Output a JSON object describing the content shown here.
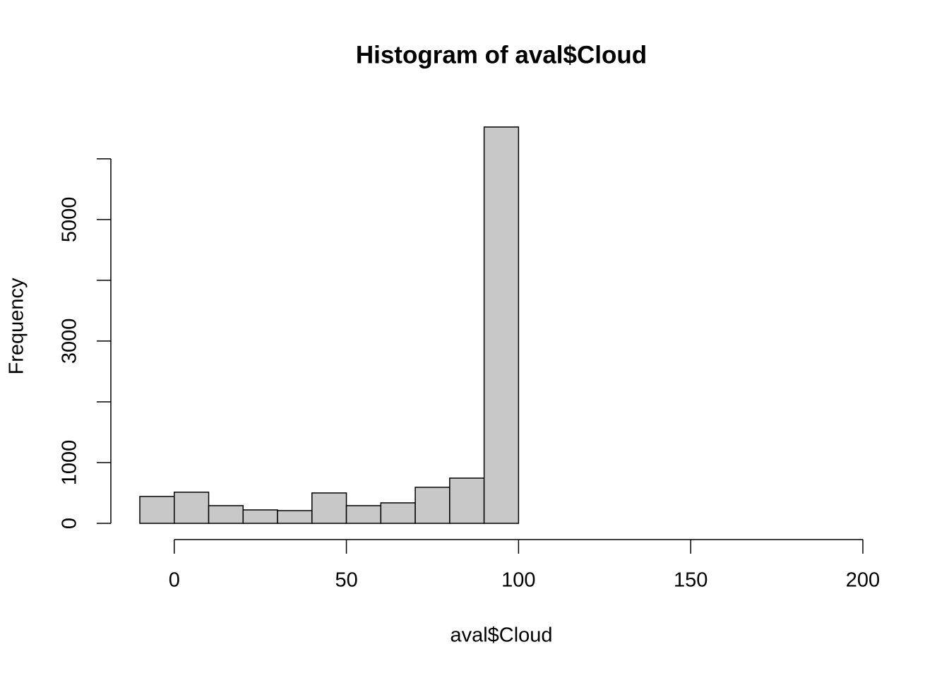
{
  "chart_data": {
    "type": "histogram",
    "title": "Histogram of aval$Cloud",
    "xlabel": "aval$Cloud",
    "ylabel": "Frequency",
    "bins": [
      -10,
      0,
      10,
      20,
      30,
      40,
      50,
      60,
      70,
      80,
      90,
      100,
      110,
      120,
      130,
      140,
      150,
      160,
      170,
      180,
      190,
      200
    ],
    "counts": [
      442,
      512,
      291,
      221,
      209,
      500,
      291,
      337,
      593,
      744,
      6523,
      0,
      0,
      0,
      0,
      0,
      0,
      0,
      0,
      0,
      0
    ],
    "color": "#c8c8c8",
    "xlim": [
      -10,
      200
    ],
    "ylim": [
      0,
      6800
    ],
    "xticks": [
      0,
      50,
      100,
      150,
      200
    ],
    "yticks": [
      0,
      1000,
      {
        "value": 2000,
        "label": null
      },
      3000,
      {
        "value": 4000,
        "label": null
      },
      5000,
      {
        "value": 6000,
        "label": null
      }
    ]
  }
}
